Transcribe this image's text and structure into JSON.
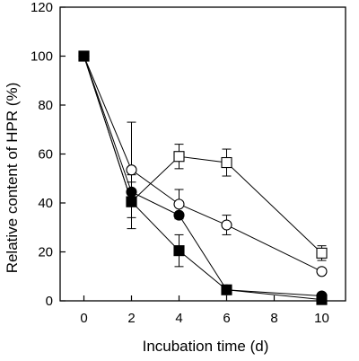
{
  "chart_data": {
    "type": "line",
    "title": "",
    "xlabel": "Incubation time (d)",
    "ylabel": "Relative content of HPR (%)",
    "xlim": [
      -1,
      11
    ],
    "ylim": [
      0,
      120
    ],
    "xticks": [
      0,
      2,
      4,
      6,
      8,
      10
    ],
    "yticks": [
      0,
      20,
      40,
      60,
      80,
      100,
      120
    ],
    "grid": false,
    "legend": "none",
    "series": [
      {
        "marker": "open-circle",
        "x": [
          0,
          2,
          4,
          6,
          10
        ],
        "y": [
          100,
          53.5,
          39.5,
          31,
          12
        ],
        "err": [
          0,
          19.5,
          6,
          4,
          0
        ]
      },
      {
        "marker": "open-square",
        "x": [
          0,
          2,
          4,
          6,
          10
        ],
        "y": [
          100,
          40.5,
          59,
          56.5,
          19.5
        ],
        "err": [
          0,
          11,
          5,
          5.5,
          3
        ]
      },
      {
        "marker": "filled-circle",
        "x": [
          0,
          2,
          4,
          6,
          10
        ],
        "y": [
          100,
          44.5,
          35,
          4.5,
          2
        ],
        "err": [
          0,
          4,
          0,
          0,
          0
        ]
      },
      {
        "marker": "filled-square",
        "x": [
          0,
          2,
          4,
          6,
          10
        ],
        "y": [
          100,
          40.5,
          20.5,
          4.5,
          0.5
        ],
        "err": [
          0,
          0,
          6.5,
          0,
          0
        ]
      }
    ]
  }
}
